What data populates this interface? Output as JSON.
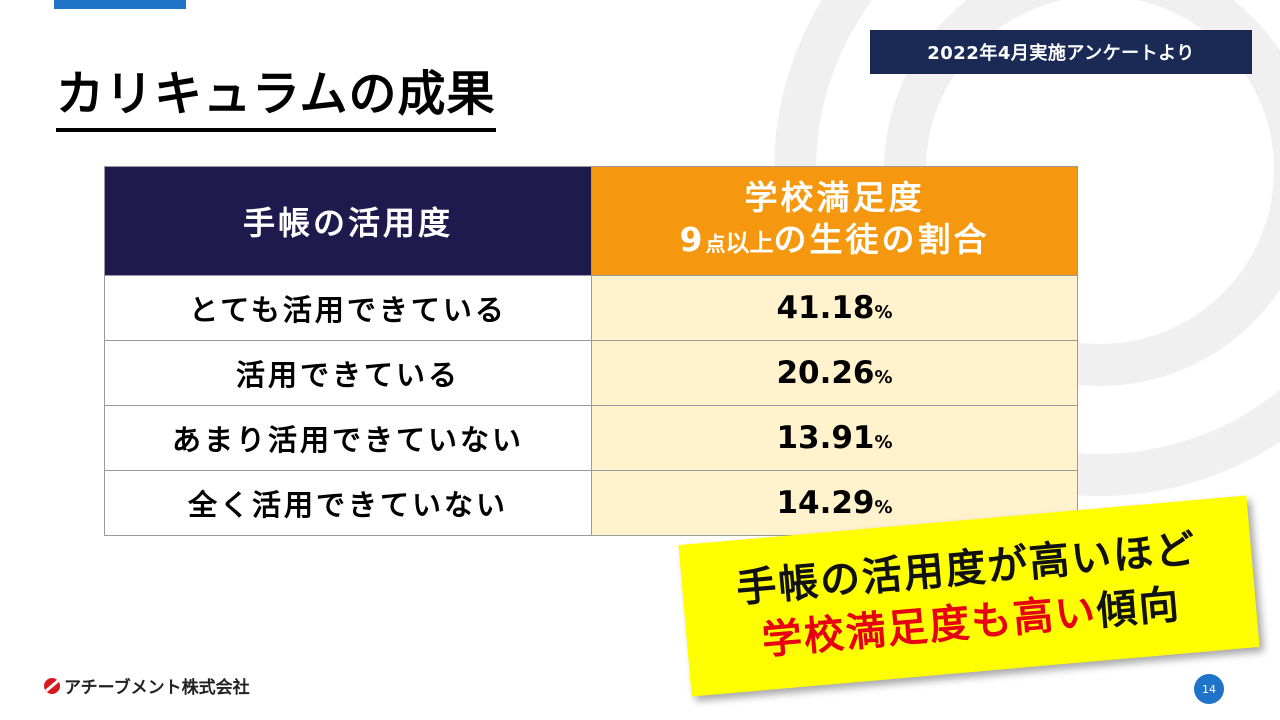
{
  "badge": "2022年4月実施アンケートより",
  "title": "カリキュラムの成果",
  "table": {
    "header_usage": "手帳の活用度",
    "header_satisfaction_line1": "学校満足度",
    "header_satisfaction_num": "9",
    "header_satisfaction_small": "点",
    "header_satisfaction_mid": "以上",
    "header_satisfaction_rest": "の生徒の割合",
    "pct_symbol": "%",
    "rows": [
      {
        "label": "とても活用できている",
        "value": "41.18"
      },
      {
        "label": "活用できている",
        "value": "20.26"
      },
      {
        "label": "あまり活用できていない",
        "value": "13.91"
      },
      {
        "label": "全く活用できていない",
        "value": "14.29"
      }
    ]
  },
  "callout": {
    "line1": "手帳の活用度が高いほど",
    "line2_red": "学校満足度も高い",
    "line2_black": "傾向"
  },
  "footer": {
    "company": "アチーブメント株式会社"
  },
  "page_number": "14",
  "colors": {
    "accent_blue": "#1f73c8",
    "navy": "#1e1a4e",
    "orange": "#f5980f",
    "cream": "#fff2cc",
    "highlight_yellow": "#ffff00",
    "emphasis_red": "#e60012"
  }
}
